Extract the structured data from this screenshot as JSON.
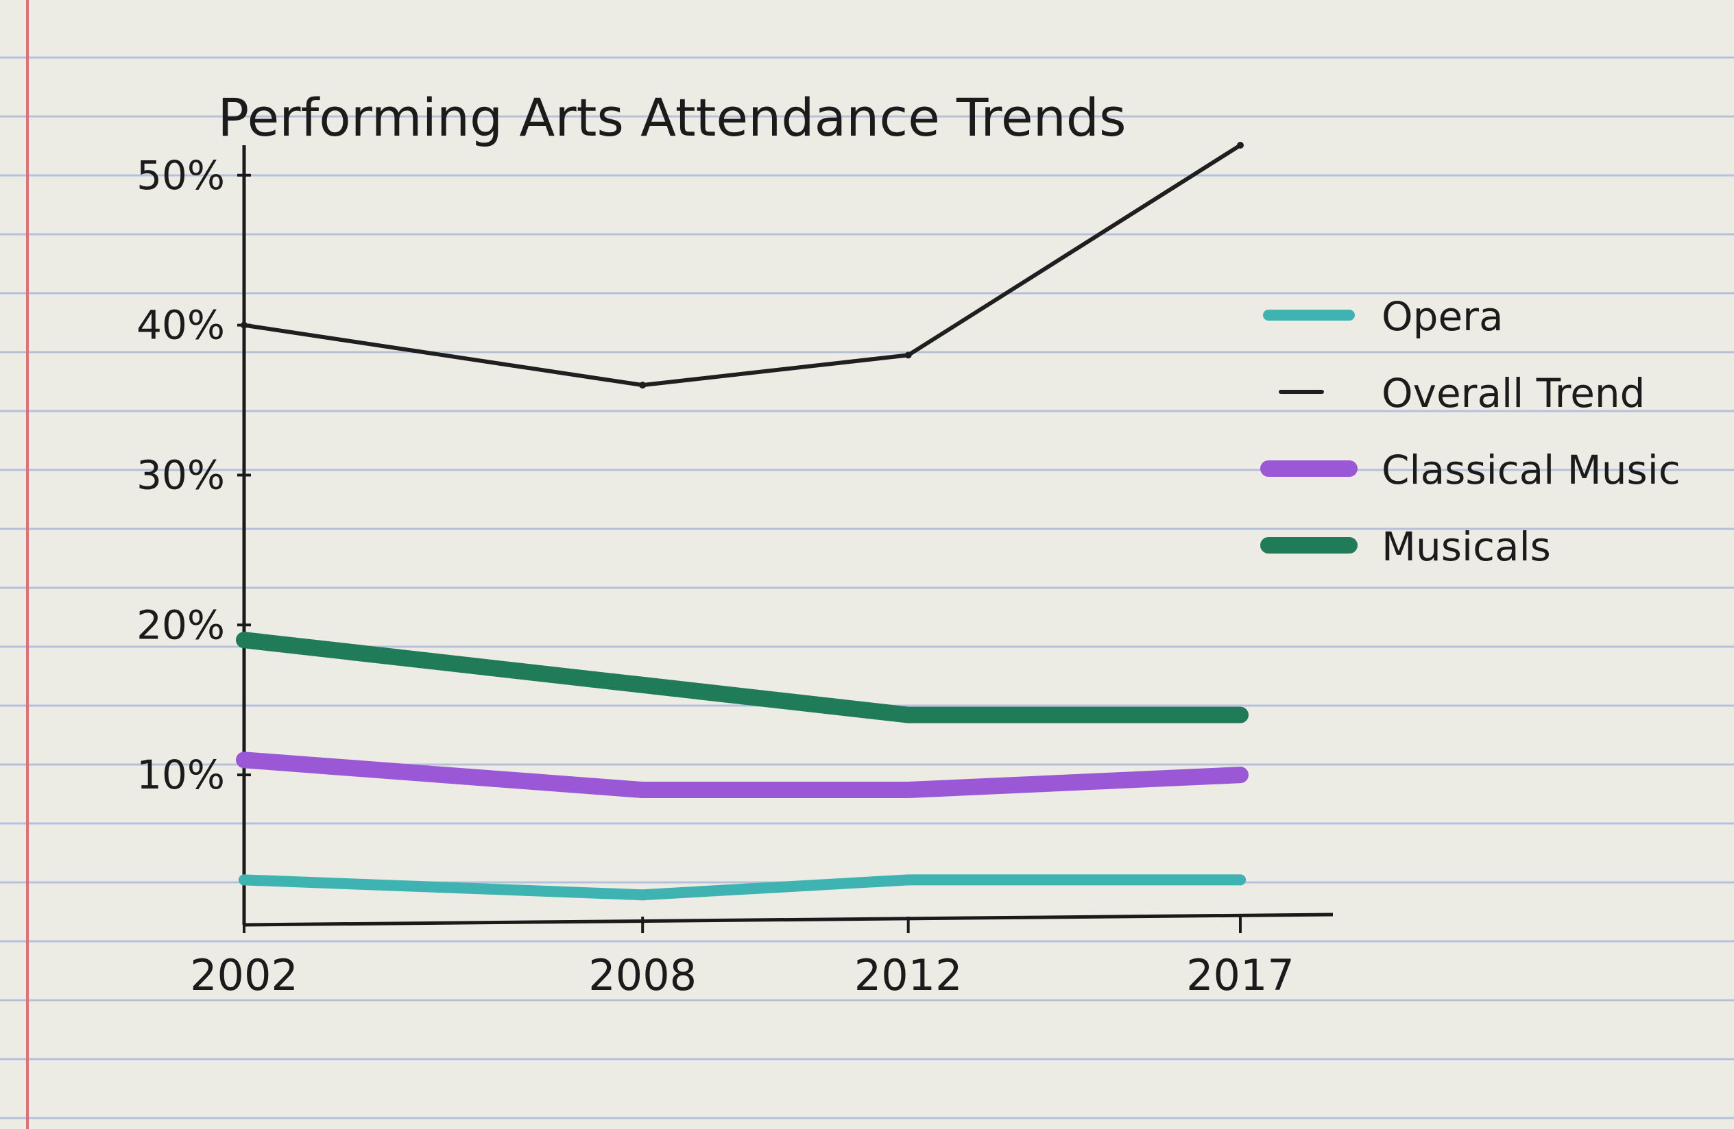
{
  "chart_data": {
    "type": "line",
    "title": "Performing Arts Attendance Trends",
    "xlabel": "",
    "ylabel": "",
    "x": [
      2002,
      2008,
      2012,
      2017
    ],
    "x_tick_labels": [
      "2002",
      "2008",
      "2012",
      "2017"
    ],
    "y_tick_labels": [
      "10%",
      "20%",
      "30%",
      "40%",
      "50%"
    ],
    "y_ticks": [
      10,
      20,
      30,
      40,
      50
    ],
    "ylim": [
      0,
      52
    ],
    "grid": false,
    "legend": {
      "position": "right",
      "entries": [
        "Opera",
        "Overall Trend",
        "Classical Music",
        "Musicals"
      ]
    },
    "series": [
      {
        "name": "Opera",
        "color": "#3fb3b2",
        "values": [
          3,
          2,
          3,
          3
        ]
      },
      {
        "name": "Overall Trend",
        "color": "#1f1f1f",
        "values": [
          40,
          36,
          38,
          52
        ]
      },
      {
        "name": "Classical Music",
        "color": "#9a57d6",
        "values": [
          11,
          9,
          9,
          10
        ]
      },
      {
        "name": "Musicals",
        "color": "#1f7b58",
        "values": [
          19,
          16,
          14,
          14
        ]
      }
    ]
  }
}
